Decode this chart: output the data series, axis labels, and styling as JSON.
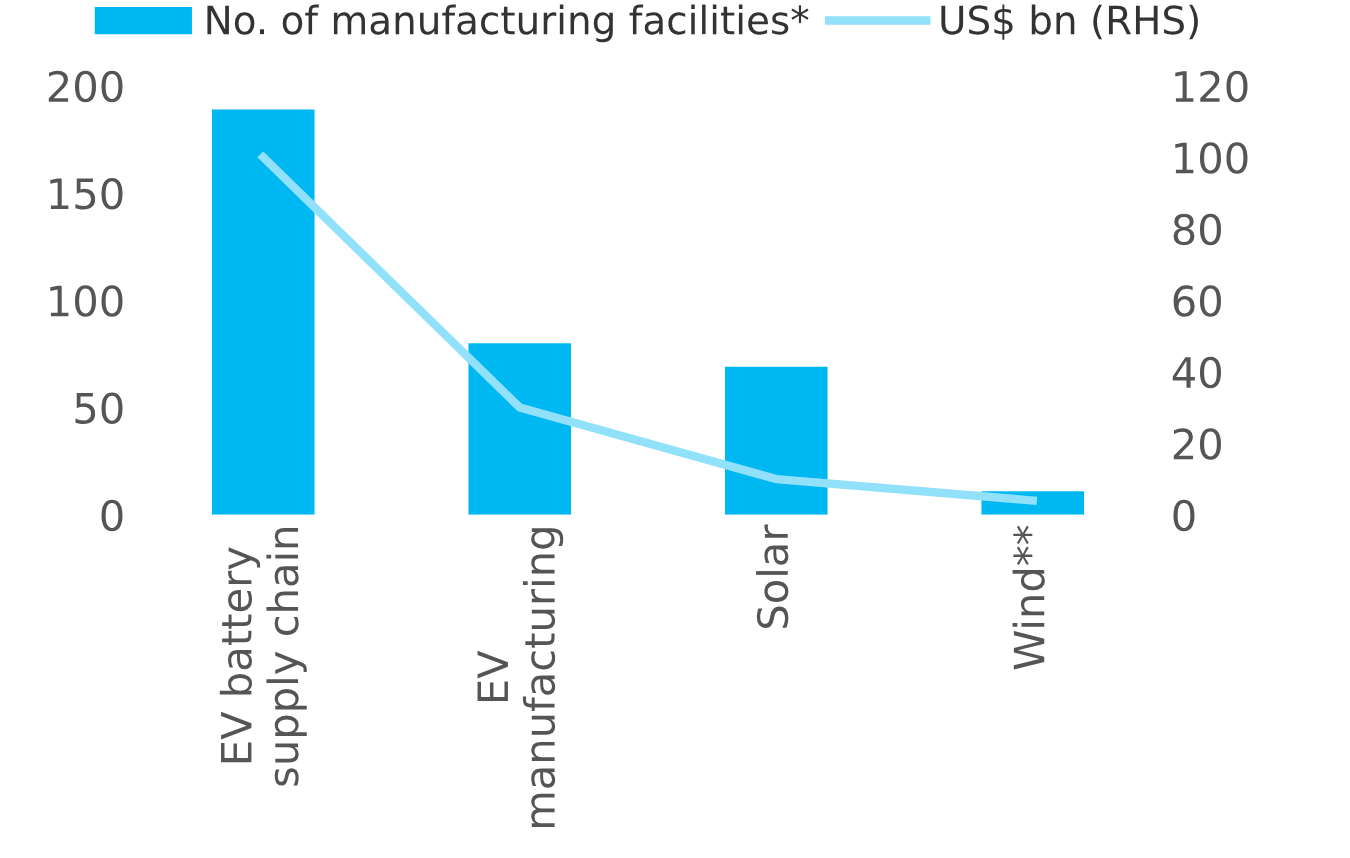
{
  "chart_data": {
    "type": "bar",
    "categories": [
      "EV battery\nsupply chain",
      "EV\nmanufacturing",
      "Solar",
      "Wind**"
    ],
    "series": [
      {
        "name": "No. of manufacturing facilities*",
        "color": "#00b8f1",
        "values": [
          189,
          80,
          69,
          11
        ]
      },
      {
        "name": "US$ bn (RHS)",
        "type": "line",
        "axis": "y2",
        "color": "#91e1fb",
        "values": [
          100,
          30,
          10,
          4
        ]
      }
    ],
    "ylim": [
      0,
      200
    ],
    "yticks": [
      0,
      50,
      100,
      150,
      200
    ],
    "y2lim": [
      0,
      120
    ],
    "y2ticks": [
      0,
      20,
      40,
      60,
      80,
      100,
      120
    ],
    "legend": "top",
    "grid": false
  }
}
